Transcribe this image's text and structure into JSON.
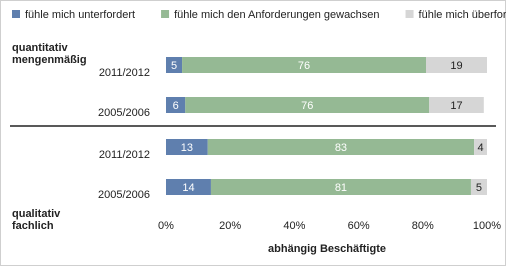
{
  "chart_data": {
    "type": "stacked-barh",
    "legend": "top",
    "groups": [
      {
        "label": [
          "quantitativ",
          "mengenmäßig"
        ],
        "position": "top"
      },
      {
        "label": [
          "qualitativ",
          "fachlich"
        ],
        "position": "bottom"
      }
    ],
    "categories": [
      "2011/2012",
      "2005/2006",
      "2011/2012",
      "2005/2006"
    ],
    "series": [
      {
        "name": "fühle mich unterfordert",
        "color": "#5f7fae",
        "label_color": "#ffffff",
        "values": [
          5,
          6,
          13,
          14
        ]
      },
      {
        "name": "fühle mich den Anforderungen gewachsen",
        "color": "#95b994",
        "label_color": "#ffffff",
        "values": [
          76,
          76,
          83,
          81
        ]
      },
      {
        "name": "fühle mich überfordert",
        "color": "#d6d6d6",
        "label_color": "#222222",
        "values": [
          19,
          17,
          4,
          5
        ]
      }
    ],
    "xlabel": "abhängig Beschäftigte",
    "xlim": [
      0,
      100
    ],
    "xticks": [
      {
        "value": 0,
        "label": "0%"
      },
      {
        "value": 20,
        "label": "20%"
      },
      {
        "value": 40,
        "label": "40%"
      },
      {
        "value": 60,
        "label": "60%"
      },
      {
        "value": 80,
        "label": "80%"
      },
      {
        "value": 100,
        "label": "100%"
      }
    ]
  }
}
